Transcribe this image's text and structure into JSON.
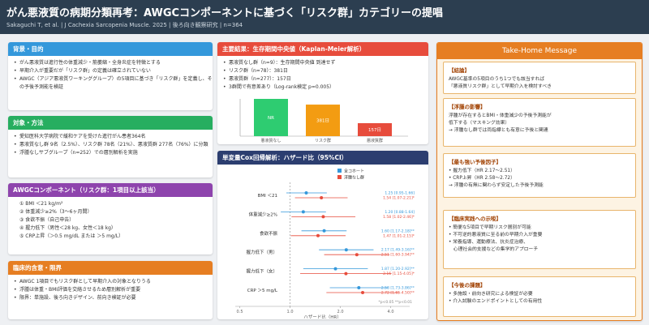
{
  "header": {
    "title": "がん悪液質の病期分類再考：AWGCコンポーネントに基づく「リスク群」カテゴリーの提唱",
    "subtitle": "Sakaguchi T, et al. | J Cachexia Sarcopenia Muscle. 2025 | 後ろ向き観察研究 | n=364"
  },
  "background": {
    "title": "背景・目的",
    "items": [
      "がん悪液質は進行性の体重減少・筋萎縮・全身炎症を特徴とする",
      "早期介入が重要だが「リスク群」の定義は確立されていない",
      "AWGC（アジア悪液質ワーキンググループ）の5項目に基づき「リスク群」を定義し、その予後予測能を検証"
    ]
  },
  "methods": {
    "title": "対象・方法",
    "items": [
      "愛知医科大学病院で緩和ケアを受けた進行がん患者364名",
      "悪液質なし群 9名（2.5%）、リスク群 78名（21%）、悪液質群 277名（76%）に分類",
      "浮腫なしサブグループ（n=252）での層別解析を実施"
    ]
  },
  "awgc": {
    "title": "AWGCコンポーネント（リスク群：1項目以上該当）",
    "items": [
      "① BMI ＜21 kg/m²",
      "② 体重減少≥2%（3〜6ヶ月間）",
      "③ 食欲不振（自己申告）",
      "④ 握力低下（男性＜28 kg、女性＜18 kg）",
      "⑤ CRP上昇（＞0.5 mg/dL または ＞5 mg/L）"
    ]
  },
  "implications": {
    "title": "臨床的含意・限界",
    "items": [
      "AWGC 1項目でもリスク群として早期介入の対象となりうる",
      "浮腫は体重・BMI評価を交絡させるため層別解析が重要",
      "限界：単施設、後ろ向きデザイン、前向き検証が必要"
    ]
  },
  "survival": {
    "title": "主要結果：生存期間中央値（Kaplan-Meier解析）",
    "items": [
      "悪液質なし群（n=9）：生存期間中央値 到達せず",
      "リスク群（n=78）：381日",
      "悪液質群（n=277）：157日",
      "3群間で有意差あり（Log-rank検定 p=0.005）"
    ],
    "chart_data": {
      "type": "bar",
      "categories": [
        "悪液質なし",
        "リスク群",
        "悪液質群"
      ],
      "values": [
        null,
        381,
        157
      ],
      "value_labels": [
        "NR",
        "381日",
        "157日"
      ],
      "colors": [
        "#2ecc71",
        "#f39c12",
        "#e74c3c"
      ],
      "ylim": [
        0,
        450
      ]
    }
  },
  "cox": {
    "title": "単変量Cox回帰解析：ハザード比（95%CI）",
    "chart_data": {
      "type": "forest",
      "categories": [
        "BMI ＜21",
        "体重減少≥2%",
        "食欲不振",
        "握力低下（男）",
        "握力低下（女）",
        "CRP ＞5 mg/L"
      ],
      "series": [
        {
          "name": "全コホート",
          "color": "#3498db",
          "values": [
            1.25,
            1.2,
            1.6,
            2.17,
            1.87,
            2.58
          ],
          "lower": [
            0.95,
            0.88,
            1.17,
            1.49,
            1.2,
            1.73
          ],
          "upper": [
            1.66,
            1.64,
            2.18,
            3.16,
            2.92,
            3.86
          ],
          "value_labels": [
            "1.25 [0.95-1.66]",
            "1.20 [0.88-1.64]",
            "1.60 [1.17-2.18]**",
            "2.17 [1.49-3.16]**",
            "1.87 [1.20-2.92]**",
            "2.58 [1.73-3.86]**"
          ]
        },
        {
          "name": "浮腫なし群",
          "color": "#e74c3c",
          "values": [
            1.54,
            1.58,
            1.47,
            2.51,
            2.16,
            2.72
          ],
          "lower": [
            1.07,
            1.02,
            1.01,
            1.6,
            1.15,
            1.65
          ],
          "upper": [
            2.21,
            2.46,
            2.15,
            3.94,
            4.05,
            4.5
          ],
          "value_labels": [
            "1.54 [1.07-2.21]*",
            "1.58 [1.02-2.46]*",
            "1.47 [1.01-2.15]*",
            "2.51 [1.60-3.94]**",
            "2.16 [1.15-4.05]*",
            "2.72 [1.65-4.50]**"
          ]
        }
      ],
      "xlim": [
        0.47,
        5.2
      ],
      "xticks": [
        0.5,
        {
          "value": 1,
          "label": "1.0"
        },
        {
          "value": 2,
          "label": "2.0"
        },
        {
          "value": 4,
          "label": "4.0"
        }
      ],
      "log_scale": true,
      "reference": 1,
      "x_label": "ハザード比（HR）",
      "footnote": "*p<0.05 **p<0.01"
    }
  },
  "takehome": {
    "title": "Take-Home Message",
    "sections": [
      {
        "heading": "【結論】",
        "lines": [
          "AWGC基準の5項目のうち1つでも該当すれば",
          "「悪液質リスク群」として早期介入を検討すべき"
        ]
      },
      {
        "heading": "【浮腫の影響】",
        "lines": [
          "浮腫が存在するとBMI・体重減少の予後予測能が",
          "低下する（マスキング効果）",
          "→ 浮腫なし群では両指標とも有意に予後と関連"
        ]
      },
      {
        "heading": "【最も強い予後因子】",
        "lines": [
          "• 握力低下（HR 2.17〜2.51）",
          "• CRP上昇（HR 2.58〜2.72）",
          "→ 浮腫の有無に関わらず安定した予後予測能"
        ]
      },
      {
        "heading": "【臨床実践への示唆】",
        "lines": [
          "• 簡便な5項目で早期リスク層別が可能",
          "• 不可逆的悪液質に至る前の早期介入が重要",
          "• 栄養指導、運動療法、抗炎症治療、",
          "　心理社会的支援などの集学的アプローチ"
        ]
      },
      {
        "heading": "【今後の課題】",
        "lines": [
          "• 多施設・前向き研究による検証が必要",
          "• 介入試験のエンドポイントとしての有用性"
        ]
      }
    ]
  }
}
